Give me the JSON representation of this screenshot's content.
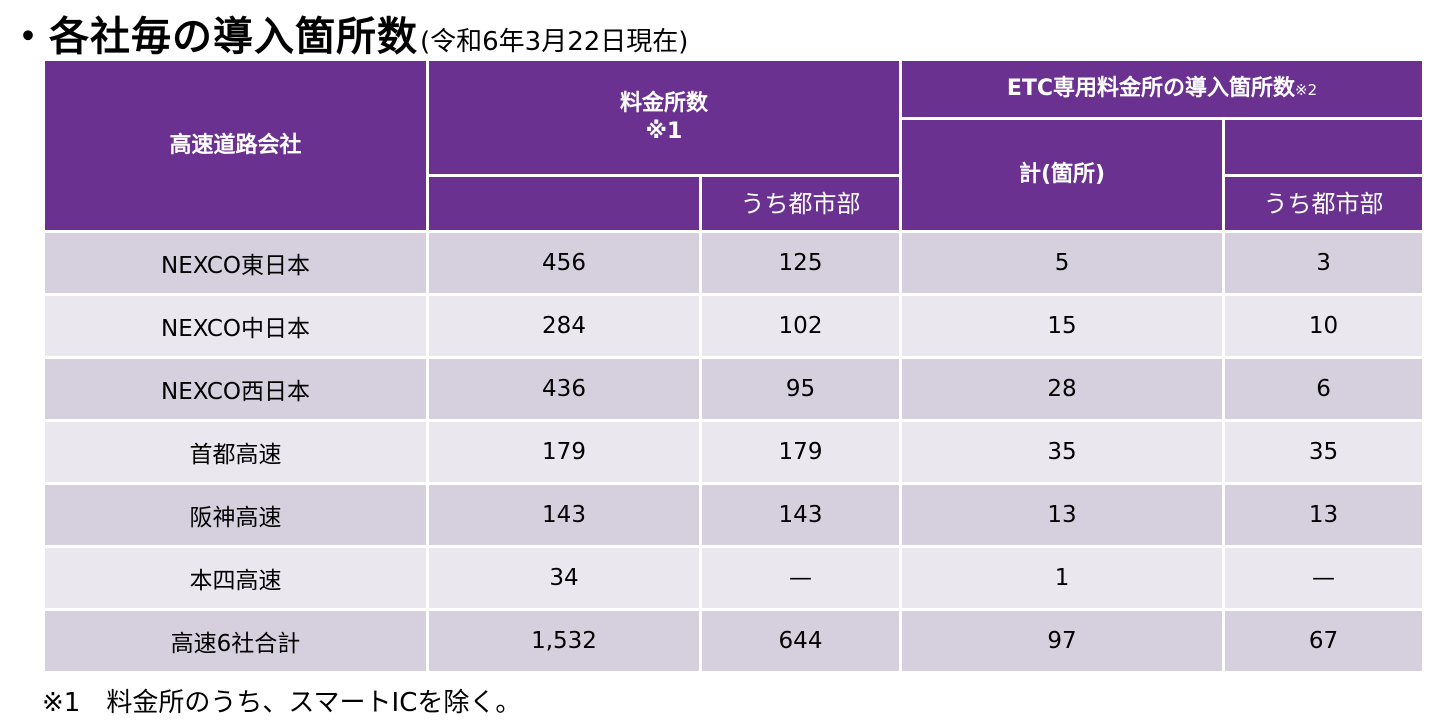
{
  "title": {
    "main": "・各社毎の導入箇所数",
    "sub": "(令和6年3月22日現在)"
  },
  "table": {
    "headers": {
      "company": "高速道路会社",
      "toll_count": "料金所数",
      "toll_count_note": "※1",
      "toll_urban": "うち都市部",
      "etc_group": "ETC専用料金所の導入箇所数",
      "etc_group_note": "※2",
      "etc_total": "計(箇所)",
      "etc_urban": "うち都市部"
    },
    "rows": [
      {
        "company": "NEXCO東日本",
        "toll": "456",
        "toll_urban": "125",
        "etc": "5",
        "etc_urban": "3"
      },
      {
        "company": "NEXCO中日本",
        "toll": "284",
        "toll_urban": "102",
        "etc": "15",
        "etc_urban": "10"
      },
      {
        "company": "NEXCO西日本",
        "toll": "436",
        "toll_urban": "95",
        "etc": "28",
        "etc_urban": "6"
      },
      {
        "company": "首都高速",
        "toll": "179",
        "toll_urban": "179",
        "etc": "35",
        "etc_urban": "35"
      },
      {
        "company": "阪神高速",
        "toll": "143",
        "toll_urban": "143",
        "etc": "13",
        "etc_urban": "13"
      },
      {
        "company": "本四高速",
        "toll": "34",
        "toll_urban": "—",
        "etc": "1",
        "etc_urban": "—"
      },
      {
        "company": "高速6社合計",
        "toll": "1,532",
        "toll_urban": "644",
        "etc": "97",
        "etc_urban": "67"
      }
    ]
  },
  "footnote": "※1　料金所のうち、スマートICを除く。",
  "colors": {
    "header_bg": "#6a3191",
    "row_dark": "#d6d0de",
    "row_light": "#eae7ef"
  }
}
